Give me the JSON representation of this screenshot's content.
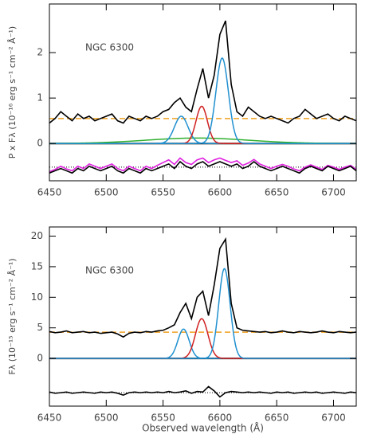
{
  "chart_data": [
    {
      "type": "line",
      "annotation": "NGC 6300",
      "ylabel": "P x Fλ (10⁻¹⁶ erg s⁻¹ cm⁻² Å⁻¹)",
      "xlim": [
        6450,
        6720
      ],
      "xticks": [
        6450,
        6500,
        6550,
        6600,
        6650,
        6700
      ],
      "ylim": [
        -0.82,
        3.07
      ],
      "yticks": [
        0,
        1,
        2
      ],
      "x": [
        6450,
        6455,
        6460,
        6465,
        6470,
        6475,
        6480,
        6485,
        6490,
        6495,
        6500,
        6505,
        6510,
        6515,
        6520,
        6525,
        6530,
        6535,
        6540,
        6545,
        6550,
        6555,
        6560,
        6565,
        6570,
        6575,
        6580,
        6585,
        6590,
        6595,
        6600,
        6605,
        6610,
        6615,
        6620,
        6625,
        6630,
        6635,
        6640,
        6645,
        6650,
        6655,
        6660,
        6665,
        6670,
        6675,
        6680,
        6685,
        6690,
        6695,
        6700,
        6705,
        6710,
        6715,
        6720
      ],
      "series": [
        {
          "color": "#000000",
          "values": [
            0.45,
            0.55,
            0.7,
            0.6,
            0.5,
            0.65,
            0.55,
            0.6,
            0.5,
            0.55,
            0.6,
            0.65,
            0.5,
            0.45,
            0.6,
            0.55,
            0.5,
            0.6,
            0.55,
            0.6,
            0.7,
            0.75,
            0.9,
            1.0,
            0.8,
            0.7,
            1.2,
            1.65,
            1.0,
            1.5,
            2.4,
            2.7,
            1.3,
            0.7,
            0.6,
            0.8,
            0.7,
            0.6,
            0.55,
            0.6,
            0.55,
            0.5,
            0.45,
            0.55,
            0.6,
            0.75,
            0.65,
            0.55,
            0.6,
            0.65,
            0.55,
            0.5,
            0.6,
            0.55,
            0.5
          ]
        },
        {
          "color": "#e020e0",
          "values": [
            -0.62,
            -0.57,
            -0.5,
            -0.56,
            -0.6,
            -0.5,
            -0.55,
            -0.45,
            -0.5,
            -0.55,
            -0.5,
            -0.45,
            -0.55,
            -0.6,
            -0.5,
            -0.55,
            -0.6,
            -0.5,
            -0.55,
            -0.48,
            -0.42,
            -0.36,
            -0.46,
            -0.32,
            -0.42,
            -0.46,
            -0.36,
            -0.32,
            -0.42,
            -0.36,
            -0.32,
            -0.37,
            -0.42,
            -0.38,
            -0.48,
            -0.43,
            -0.35,
            -0.45,
            -0.5,
            -0.55,
            -0.5,
            -0.46,
            -0.5,
            -0.56,
            -0.6,
            -0.52,
            -0.47,
            -0.52,
            -0.57,
            -0.48,
            -0.52,
            -0.57,
            -0.52,
            -0.48,
            -0.57
          ]
        },
        {
          "color": "#000000",
          "values": [
            -0.65,
            -0.6,
            -0.55,
            -0.6,
            -0.65,
            -0.55,
            -0.6,
            -0.5,
            -0.55,
            -0.6,
            -0.55,
            -0.5,
            -0.6,
            -0.65,
            -0.55,
            -0.6,
            -0.65,
            -0.55,
            -0.6,
            -0.55,
            -0.5,
            -0.45,
            -0.55,
            -0.4,
            -0.5,
            -0.55,
            -0.45,
            -0.4,
            -0.5,
            -0.45,
            -0.4,
            -0.45,
            -0.5,
            -0.45,
            -0.55,
            -0.5,
            -0.4,
            -0.5,
            -0.55,
            -0.6,
            -0.55,
            -0.5,
            -0.55,
            -0.6,
            -0.65,
            -0.55,
            -0.5,
            -0.55,
            -0.6,
            -0.5,
            -0.55,
            -0.6,
            -0.55,
            -0.5,
            -0.6
          ]
        }
      ],
      "continuum": 0.55,
      "continuum_color": "#f0a020",
      "residual_level": -0.52,
      "components": [
        {
          "color": "#30b030",
          "center": 6580,
          "amplitude": 0.12,
          "sigma": 45
        },
        {
          "color": "#2090d0",
          "center": 6566,
          "amplitude": 0.6,
          "sigma": 6
        },
        {
          "color": "#d02020",
          "center": 6584,
          "amplitude": 0.82,
          "sigma": 5
        },
        {
          "color": "#2090d0",
          "center": 6602,
          "amplitude": 1.88,
          "sigma": 5.5
        }
      ]
    },
    {
      "type": "line",
      "annotation": "NGC 6300",
      "ylabel": "Fλ (10⁻¹⁵ erg s⁻¹ cm⁻² Å⁻¹)",
      "xlabel": "Observed wavelength (Å)",
      "xlim": [
        6450,
        6720
      ],
      "xticks": [
        6450,
        6500,
        6550,
        6600,
        6650,
        6700
      ],
      "ylim": [
        -7.8,
        21.5
      ],
      "yticks": [
        0,
        5,
        10,
        15,
        20
      ],
      "x": [
        6450,
        6455,
        6460,
        6465,
        6470,
        6475,
        6480,
        6485,
        6490,
        6495,
        6500,
        6505,
        6510,
        6515,
        6520,
        6525,
        6530,
        6535,
        6540,
        6545,
        6550,
        6555,
        6560,
        6565,
        6570,
        6575,
        6580,
        6585,
        6590,
        6595,
        6600,
        6605,
        6610,
        6615,
        6620,
        6625,
        6630,
        6635,
        6640,
        6645,
        6650,
        6655,
        6660,
        6665,
        6670,
        6675,
        6680,
        6685,
        6690,
        6695,
        6700,
        6705,
        6710,
        6715,
        6720
      ],
      "series": [
        {
          "color": "#000000",
          "values": [
            4.4,
            4.2,
            4.3,
            4.5,
            4.2,
            4.3,
            4.4,
            4.2,
            4.3,
            4.1,
            4.2,
            4.3,
            4.0,
            3.5,
            4.1,
            4.3,
            4.2,
            4.4,
            4.3,
            4.5,
            4.6,
            5.0,
            5.5,
            7.5,
            9.0,
            6.5,
            10.0,
            11.0,
            7.0,
            12.0,
            18.0,
            19.5,
            9.0,
            5.0,
            4.6,
            4.5,
            4.4,
            4.3,
            4.4,
            4.2,
            4.3,
            4.5,
            4.3,
            4.2,
            4.4,
            4.3,
            4.2,
            4.3,
            4.5,
            4.3,
            4.2,
            4.4,
            4.3,
            4.2,
            4.3
          ]
        },
        {
          "color": "#000000",
          "values": [
            -5.5,
            -5.7,
            -5.6,
            -5.5,
            -5.7,
            -5.6,
            -5.5,
            -5.6,
            -5.7,
            -5.5,
            -5.6,
            -5.5,
            -5.7,
            -6.0,
            -5.6,
            -5.5,
            -5.6,
            -5.5,
            -5.6,
            -5.5,
            -5.6,
            -5.4,
            -5.6,
            -5.5,
            -5.3,
            -5.7,
            -5.4,
            -5.5,
            -4.6,
            -5.3,
            -6.3,
            -5.6,
            -5.4,
            -5.5,
            -5.6,
            -5.5,
            -5.6,
            -5.5,
            -5.6,
            -5.7,
            -5.5,
            -5.6,
            -5.5,
            -5.7,
            -5.6,
            -5.5,
            -5.6,
            -5.5,
            -5.7,
            -5.6,
            -5.5,
            -5.6,
            -5.7,
            -5.5,
            -5.6
          ]
        }
      ],
      "continuum": 4.3,
      "continuum_color": "#f0a020",
      "residual_level": -5.6,
      "components": [
        {
          "color": "#2090d0",
          "center": 6568,
          "amplitude": 4.8,
          "sigma": 5
        },
        {
          "color": "#d02020",
          "center": 6584,
          "amplitude": 6.5,
          "sigma": 5.5
        },
        {
          "color": "#2090d0",
          "center": 6604,
          "amplitude": 14.7,
          "sigma": 5
        }
      ]
    }
  ]
}
